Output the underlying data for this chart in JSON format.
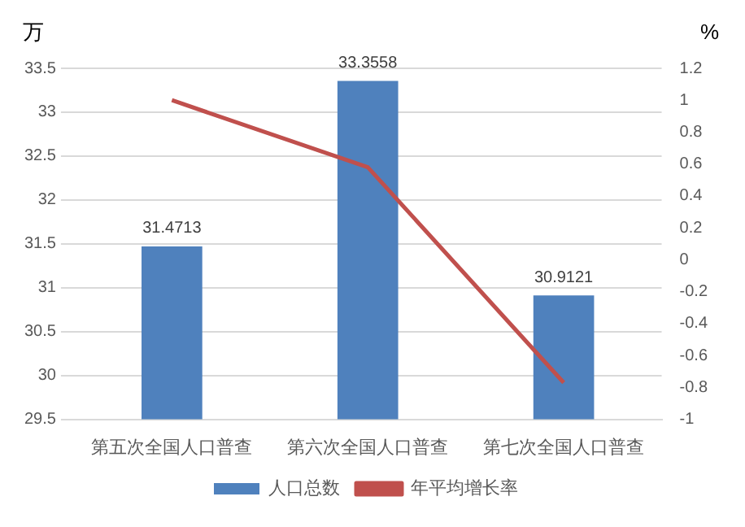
{
  "chart_data": {
    "type": "bar",
    "ylabel": "万",
    "y2label": "%",
    "categories": [
      "第五次全国人口普查",
      "第六次全国人口普查",
      "第七次全国人口普查"
    ],
    "series": [
      {
        "name": "人口总数",
        "color": "#4f81bd",
        "values": [
          31.4713,
          33.3558,
          30.9121
        ],
        "value_labels": [
          "31.4713",
          "33.3558",
          "30.9121"
        ]
      },
      {
        "name": "年平均增长率",
        "type": "line",
        "axis": "y2",
        "color": "#c0504d",
        "values": [
          1.0,
          0.58,
          -0.77
        ],
        "marker": "none"
      }
    ],
    "ylim": [
      29.5,
      33.5
    ],
    "yticks": [
      29.5,
      30,
      30.5,
      31,
      31.5,
      32,
      32.5,
      33,
      33.5
    ],
    "y2lim": [
      -1,
      1.2
    ],
    "y2ticks": [
      -1,
      -0.8,
      -0.6,
      -0.4,
      -0.2,
      0,
      0.2,
      0.4,
      0.6,
      0.8,
      1,
      1.2
    ],
    "grid": "y",
    "legend": "bottom"
  }
}
